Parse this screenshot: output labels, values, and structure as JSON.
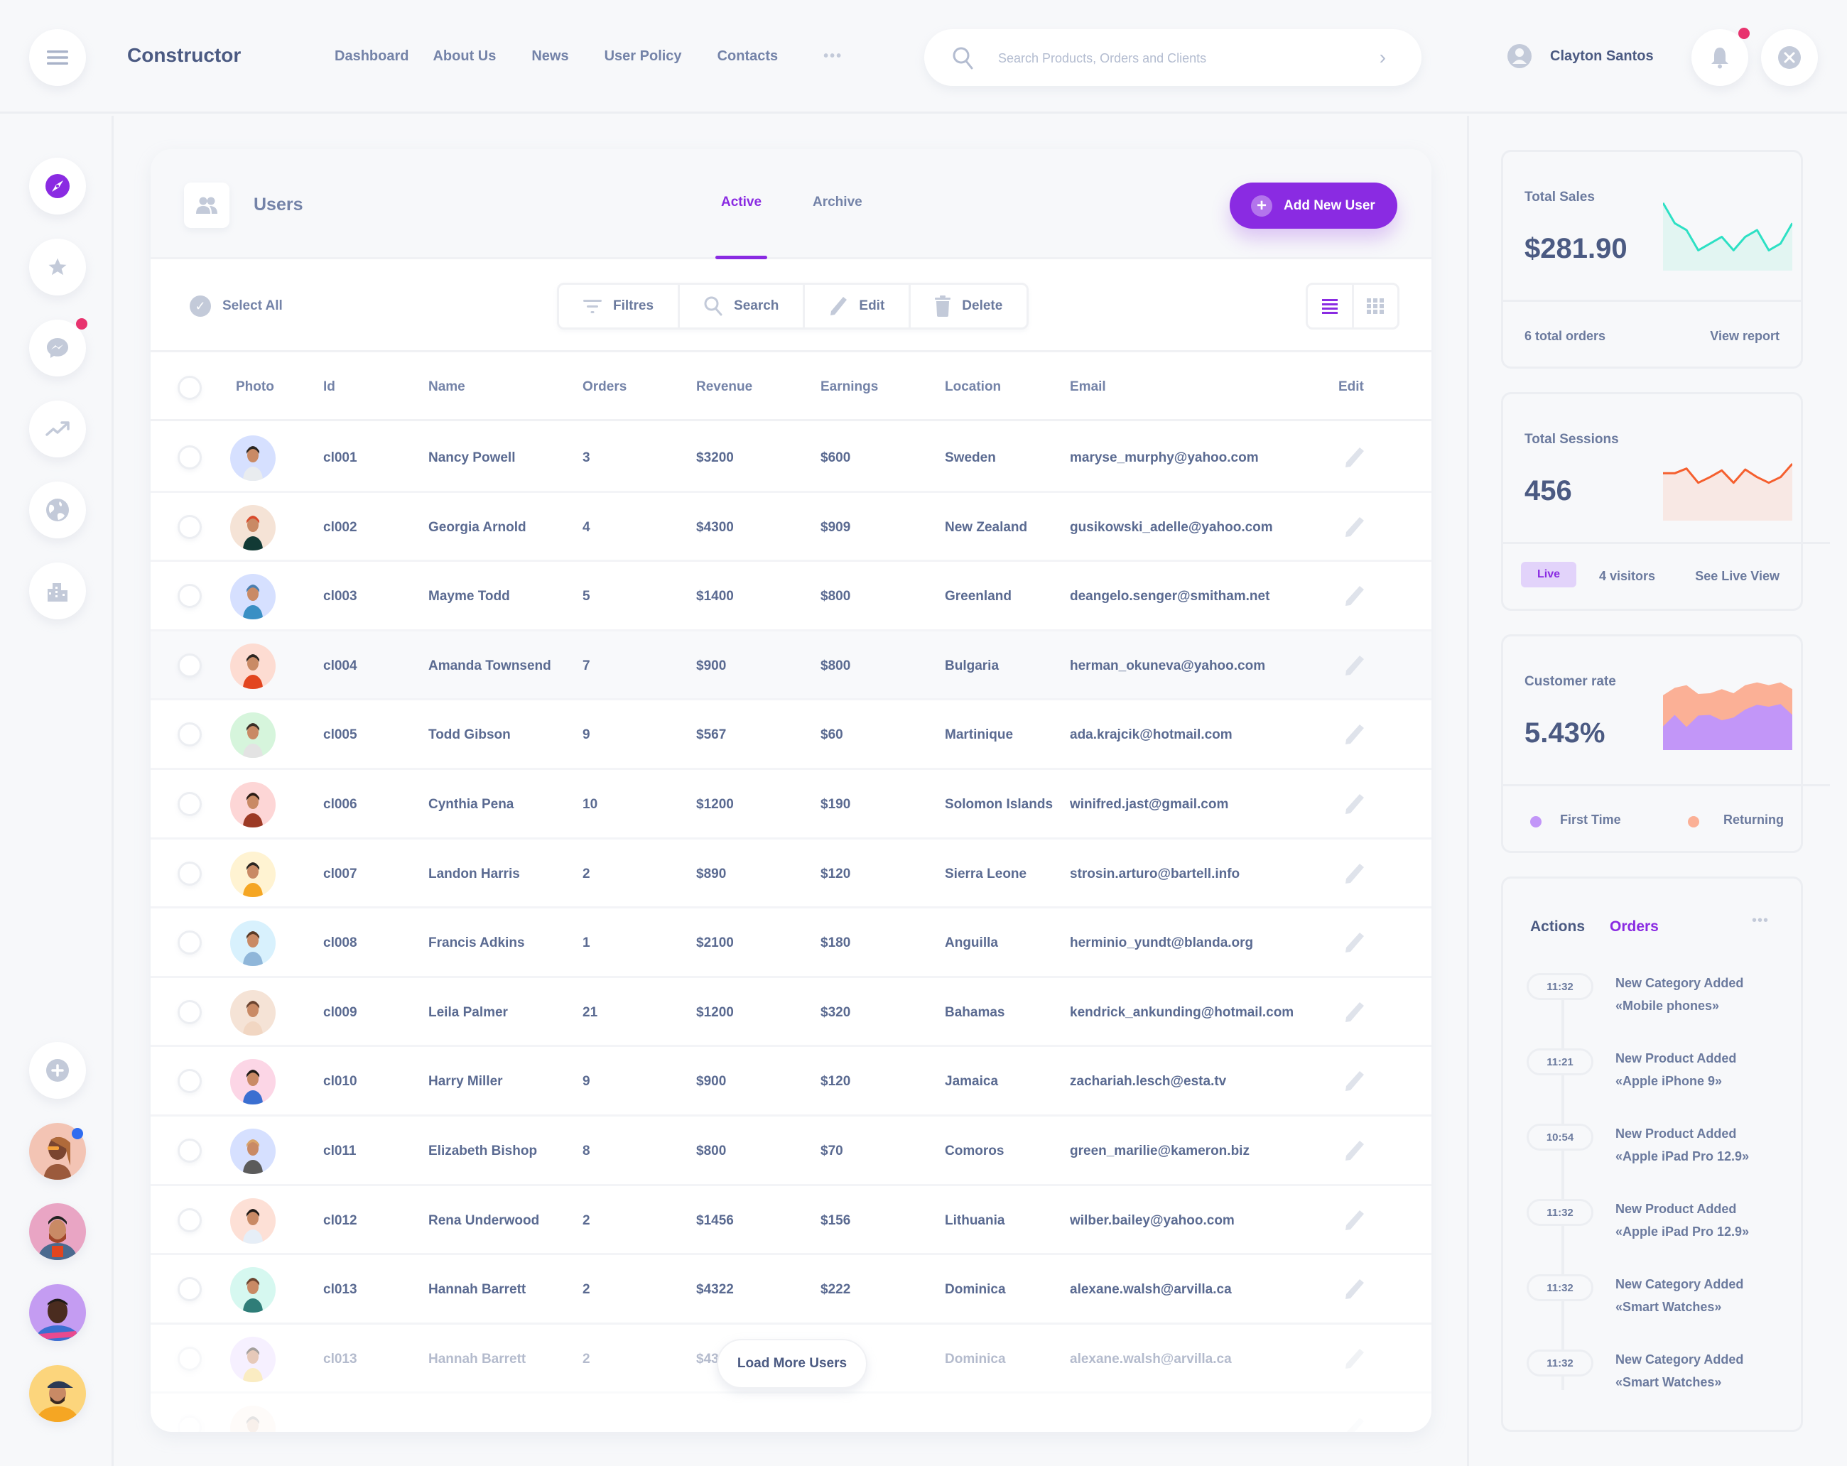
{
  "header": {
    "brand": "Constructor",
    "nav": [
      "Dashboard",
      "About Us",
      "News",
      "User Policy",
      "Contacts"
    ],
    "nav_more": "•••",
    "search": {
      "placeholder": "Search Products, Orders and Clients",
      "value": ""
    },
    "user_name": "Clayton Santos",
    "notification_dot_color": "#e8336e"
  },
  "sidebar": {
    "items": [
      {
        "icon": "compass-icon",
        "active": true
      },
      {
        "icon": "star-icon"
      },
      {
        "icon": "messenger-icon",
        "badge": true
      },
      {
        "icon": "trending-up-icon"
      },
      {
        "icon": "globe-icon"
      },
      {
        "icon": "buildings-icon"
      }
    ],
    "add_icon": "plus-circle-icon",
    "avatars": [
      {
        "bg": "#f3c4b4",
        "badge": true
      },
      {
        "bg": "#e9a5c4"
      },
      {
        "bg": "#c49cf2"
      },
      {
        "bg": "#fcd57c"
      }
    ]
  },
  "main": {
    "title": "Users",
    "tabs": [
      {
        "label": "Active",
        "active": true
      },
      {
        "label": "Archive",
        "active": false
      }
    ],
    "add_button": "Add New User",
    "select_all": "Select All",
    "toolbar": {
      "filters": "Filtres",
      "search": "Search",
      "edit": "Edit",
      "delete": "Delete"
    },
    "columns": [
      "Photo",
      "Id",
      "Name",
      "Orders",
      "Revenue",
      "Earnings",
      "Location",
      "Email",
      "Edit"
    ],
    "rows": [
      {
        "id": "cl001",
        "name": "Nancy Powell",
        "orders": "3",
        "revenue": "$3200",
        "earnings": "$600",
        "location": "Sweden",
        "email": "maryse_murphy@yahoo.com",
        "avatar_bg": "#d6e0ff",
        "shirt": "#e9ecef",
        "hair": "#2b2622"
      },
      {
        "id": "cl002",
        "name": "Georgia Arnold",
        "orders": "4",
        "revenue": "$4300",
        "earnings": "$909",
        "location": "New Zealand",
        "email": "gusikowski_adelle@yahoo.com",
        "avatar_bg": "#f5e3d6",
        "shirt": "#123a35",
        "hair": "#d94a2b"
      },
      {
        "id": "cl003",
        "name": "Mayme Todd",
        "orders": "5",
        "revenue": "$1400",
        "earnings": "$800",
        "location": "Greenland",
        "email": "deangelo.senger@smitham.net",
        "avatar_bg": "#d6e0ff",
        "shirt": "#3a8fc4",
        "hair": "#4b7fb0"
      },
      {
        "id": "cl004",
        "name": "Amanda Townsend",
        "orders": "7",
        "revenue": "$900",
        "earnings": "$800",
        "location": "Bulgaria",
        "email": "herman_okuneva@yahoo.com",
        "avatar_bg": "#fddcd2",
        "shirt": "#e2451f",
        "hair": "#2b2622",
        "highlight": true
      },
      {
        "id": "cl005",
        "name": "Todd Gibson",
        "orders": "9",
        "revenue": "$567",
        "earnings": "$60",
        "location": "Martinique",
        "email": "ada.krajcik@hotmail.com",
        "avatar_bg": "#d6f5dc",
        "shirt": "#e3e3e3",
        "hair": "#3a2e27"
      },
      {
        "id": "cl006",
        "name": "Cynthia Pena",
        "orders": "10",
        "revenue": "$1200",
        "earnings": "$190",
        "location": "Solomon Islands",
        "email": "winifred.jast@gmail.com",
        "avatar_bg": "#fdd6d6",
        "shirt": "#9c3a25",
        "hair": "#2b1c15"
      },
      {
        "id": "cl007",
        "name": "Landon Harris",
        "orders": "2",
        "revenue": "$890",
        "earnings": "$120",
        "location": "Sierra Leone",
        "email": "strosin.arturo@bartell.info",
        "avatar_bg": "#fff3d2",
        "shirt": "#f5a623",
        "hair": "#2b2622"
      },
      {
        "id": "cl008",
        "name": "Francis Adkins",
        "orders": "1",
        "revenue": "$2100",
        "earnings": "$180",
        "location": "Anguilla",
        "email": "herminio_yundt@blanda.org",
        "avatar_bg": "#d8f1fd",
        "shirt": "#8fb6d9",
        "hair": "#5a3a26"
      },
      {
        "id": "cl009",
        "name": "Leila Palmer",
        "orders": "21",
        "revenue": "$1200",
        "earnings": "$320",
        "location": "Bahamas",
        "email": "kendrick_ankunding@hotmail.com",
        "avatar_bg": "#f5e3d6",
        "shirt": "#f1d6c2",
        "hair": "#6b4430"
      },
      {
        "id": "cl010",
        "name": "Harry Miller",
        "orders": "9",
        "revenue": "$900",
        "earnings": "$120",
        "location": "Jamaica",
        "email": "zachariah.lesch@esta.tv",
        "avatar_bg": "#fcd6e6",
        "shirt": "#3b6fd1",
        "hair": "#1f1a17"
      },
      {
        "id": "cl011",
        "name": "Elizabeth Bishop",
        "orders": "8",
        "revenue": "$800",
        "earnings": "$70",
        "location": "Comoros",
        "email": "green_marilie@kameron.biz",
        "avatar_bg": "#d6e0ff",
        "shirt": "#5b5b5b",
        "hair": "#d8a46a"
      },
      {
        "id": "cl012",
        "name": "Rena Underwood",
        "orders": "2",
        "revenue": "$1456",
        "earnings": "$156",
        "location": "Lithuania",
        "email": "wilber.bailey@yahoo.com",
        "avatar_bg": "#fde0d6",
        "shirt": "#e6eef7",
        "hair": "#1f1a17"
      },
      {
        "id": "cl013",
        "name": "Hannah Barrett",
        "orders": "2",
        "revenue": "$4322",
        "earnings": "$222",
        "location": "Dominica",
        "email": "alexane.walsh@arvilla.ca",
        "avatar_bg": "#d6f8f0",
        "shirt": "#2f7d78",
        "hair": "#6b4430"
      },
      {
        "id": "cl013",
        "name": "Hannah Barrett",
        "orders": "2",
        "revenue": "$4322",
        "earnings": "$222",
        "location": "Dominica",
        "email": "alexane.walsh@arvilla.ca",
        "avatar_bg": "#ede0ff",
        "shirt": "#f5d77a",
        "hair": "#3a2e27",
        "fade": 1
      },
      {
        "id": "",
        "name": "",
        "orders": "",
        "revenue": "",
        "earnings": "",
        "location": "",
        "email": "",
        "avatar_bg": "#fde0d6",
        "shirt": "#e2451f",
        "hair": "#2b2622",
        "fade": 2
      }
    ],
    "load_more": "Load More Users"
  },
  "right_panel": {
    "total_sales": {
      "label": "Total Sales",
      "value": "$281.90",
      "footer_left": "6 total orders",
      "footer_right": "View report",
      "color": "#2de0c4",
      "fill": "#e2f5f2"
    },
    "total_sessions": {
      "label": "Total Sessions",
      "value": "456",
      "badge": "Live",
      "visitors": "4 visitors",
      "link": "See Live View",
      "color": "#f55f2e",
      "fill": "#f8e8e4"
    },
    "customer_rate": {
      "label": "Customer rate",
      "value": "5.43%",
      "legend": [
        {
          "label": "First Time",
          "color": "#c296f8"
        },
        {
          "label": "Returning",
          "color": "#fbb096"
        }
      ]
    },
    "activity": {
      "tab_actions": "Actions",
      "tab_orders": "Orders",
      "more": "•••",
      "items": [
        {
          "time": "11:32",
          "line1": "New Category Added",
          "line2": "«Mobile phones»"
        },
        {
          "time": "11:21",
          "line1": "New Product Added",
          "line2": "«Apple iPhone 9»"
        },
        {
          "time": "10:54",
          "line1": "New Product Added",
          "line2": "«Apple iPad Pro 12.9»"
        },
        {
          "time": "11:32",
          "line1": "New Product Added",
          "line2": "«Apple iPad Pro 12.9»"
        },
        {
          "time": "11:32",
          "line1": "New Category Added",
          "line2": "«Smart Watches»"
        },
        {
          "time": "11:32",
          "line1": "New Category Added",
          "line2": "«Smart Watches»"
        }
      ]
    }
  },
  "colors": {
    "accent": "#8a2be2",
    "text_dark": "#4b5a82",
    "text_muted": "#7483a8",
    "icon_muted": "#c3cad9",
    "background": "#f7f8fa",
    "badge_red": "#e8336e",
    "badge_blue": "#2f6cf0"
  },
  "chart_data": [
    {
      "type": "area",
      "title": "Total Sales",
      "x": [
        0,
        1,
        2,
        3,
        4,
        5,
        6,
        7,
        8,
        9,
        10,
        11
      ],
      "values": [
        10,
        7,
        6,
        3,
        4,
        5,
        3,
        5,
        6,
        3,
        4,
        7
      ],
      "ylim": [
        0,
        10
      ]
    },
    {
      "type": "area",
      "title": "Total Sessions",
      "x": [
        0,
        1,
        2,
        3,
        4,
        5,
        6,
        7,
        8,
        9,
        10,
        11
      ],
      "values": [
        5,
        5,
        5.5,
        4,
        4.6,
        5.3,
        4,
        5.4,
        4.6,
        4,
        4.6,
        6
      ],
      "ylim": [
        0,
        10
      ]
    },
    {
      "type": "area",
      "title": "Customer rate",
      "x": [
        0,
        1,
        2,
        3,
        4,
        5,
        6,
        7,
        8,
        9,
        10,
        11
      ],
      "series": [
        {
          "name": "First Time",
          "values": [
            3.5,
            5.2,
            3.4,
            5.1,
            5.2,
            4.4,
            4.8,
            6.0,
            6.7,
            6.4,
            6.8,
            5.2
          ]
        },
        {
          "name": "Returning",
          "values": [
            8.1,
            9.2,
            9.6,
            8.3,
            8.4,
            9.0,
            8.4,
            9.6,
            10.0,
            9.6,
            10.0,
            9.0
          ]
        }
      ],
      "ylim": [
        0,
        10
      ],
      "stacked": false
    }
  ]
}
